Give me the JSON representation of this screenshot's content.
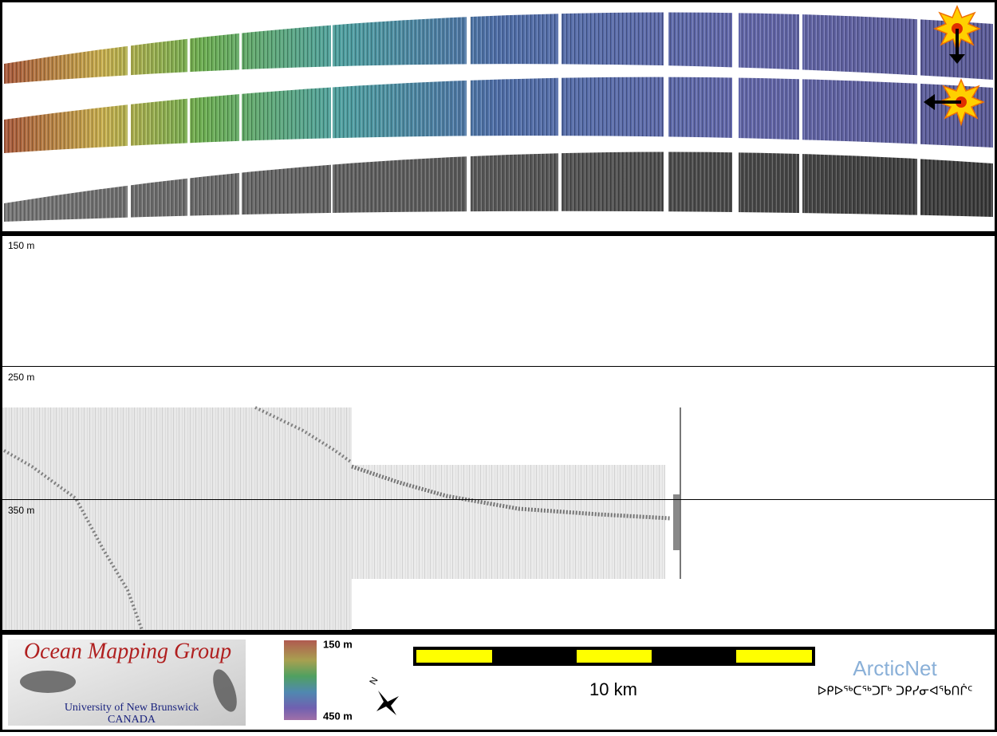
{
  "panels": {
    "depth_labels": [
      "150 m",
      "250 m",
      "350 m"
    ]
  },
  "footer": {
    "logo": {
      "title": "Ocean Mapping Group",
      "subtitle": "University of New Brunswick",
      "country": "CANADA"
    },
    "colorbar": {
      "top": "150 m",
      "bottom": "450 m"
    },
    "compass": "N",
    "scale": "10 km",
    "partner": {
      "name": "ArcticNet",
      "syllabics": "ᐅᑭᐅᖅᑕᖅᑐᒥᒃ ᑐᑭᓯᓂᐊᖃᑎᒌᑦ"
    }
  }
}
